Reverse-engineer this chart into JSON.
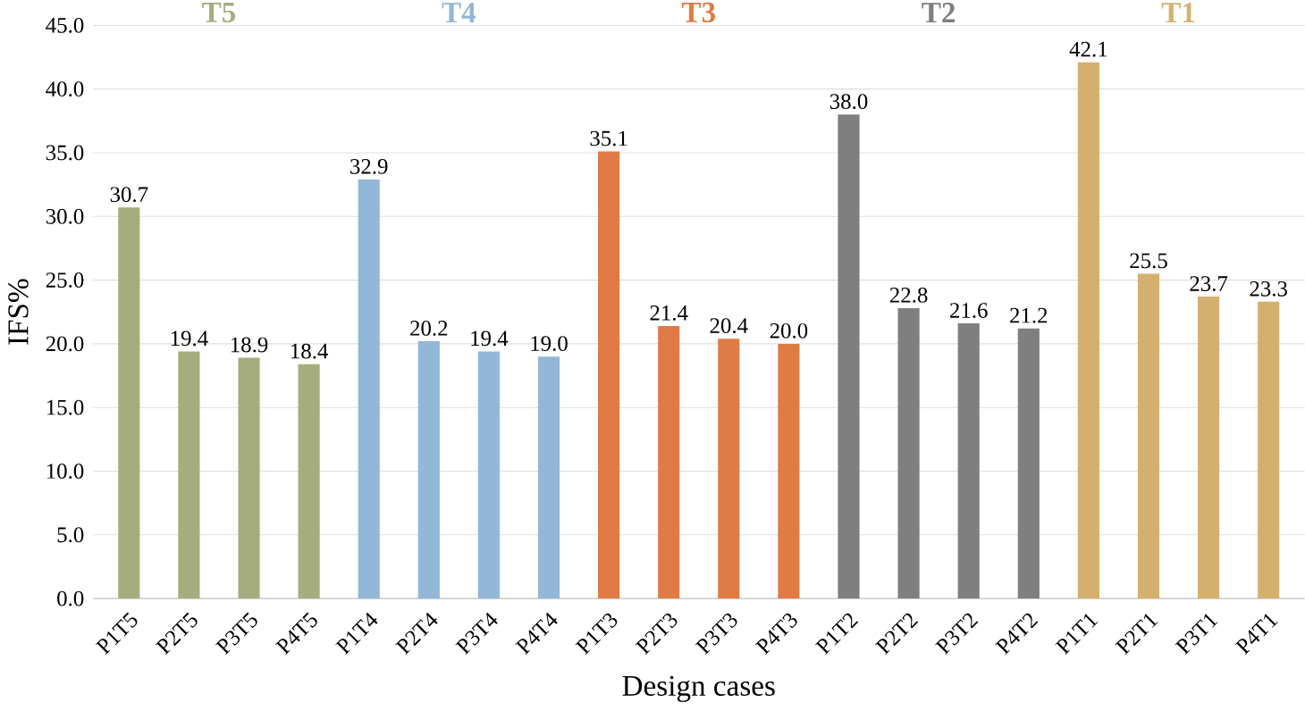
{
  "chart_data": {
    "type": "bar",
    "categories": [
      "P1T5",
      "P2T5",
      "P3T5",
      "P4T5",
      "P1T4",
      "P2T4",
      "P3T4",
      "P4T4",
      "P1T3",
      "P2T3",
      "P3T3",
      "P4T3",
      "P1T2",
      "P2T2",
      "P3T2",
      "P4T2",
      "P1T1",
      "P2T1",
      "P3T1",
      "P4T1"
    ],
    "values": [
      30.7,
      19.4,
      18.9,
      18.4,
      32.9,
      20.2,
      19.4,
      19.0,
      35.1,
      21.4,
      20.4,
      20.0,
      38.0,
      22.8,
      21.6,
      21.2,
      42.1,
      25.5,
      23.7,
      23.3
    ],
    "value_labels": [
      "30.7",
      "19.4",
      "18.9",
      "18.4",
      "32.9",
      "20.2",
      "19.4",
      "19.0",
      "35.1",
      "21.4",
      "20.4",
      "20.0",
      "38.0",
      "22.8",
      "21.6",
      "21.2",
      "42.1",
      "25.5",
      "23.7",
      "23.3"
    ],
    "colors": [
      "#a5ad7e",
      "#a5ad7e",
      "#a5ad7e",
      "#a5ad7e",
      "#93b7d6",
      "#93b7d6",
      "#93b7d6",
      "#93b7d6",
      "#e07b45",
      "#e07b45",
      "#e07b45",
      "#e07b45",
      "#7f7f7f",
      "#7f7f7f",
      "#7f7f7f",
      "#7f7f7f",
      "#d4b06f",
      "#d4b06f",
      "#d4b06f",
      "#d4b06f"
    ],
    "ylim": [
      0,
      45
    ],
    "yticks": [
      {
        "value": 0,
        "label": "0.0"
      },
      {
        "value": 5,
        "label": "5.0"
      },
      {
        "value": 10,
        "label": "10.0"
      },
      {
        "value": 15,
        "label": "15.0"
      },
      {
        "value": 20,
        "label": "20.0"
      },
      {
        "value": 25,
        "label": "25.0"
      },
      {
        "value": 30,
        "label": "30.0"
      },
      {
        "value": 35,
        "label": "35.0"
      },
      {
        "value": 40,
        "label": "40.0"
      },
      {
        "value": 45,
        "label": "45.0"
      }
    ],
    "grid": "y",
    "xlabel": "Design cases",
    "ylabel": "IFS%",
    "annotations": [
      "T5",
      "T4",
      "T3",
      "T2",
      "T1"
    ]
  }
}
